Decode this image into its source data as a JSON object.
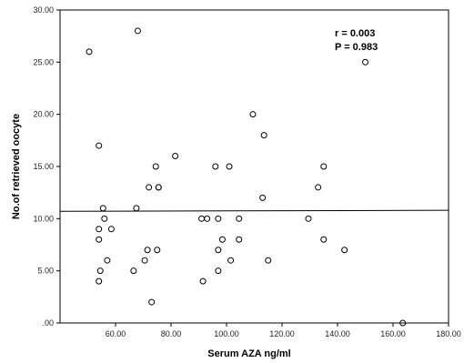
{
  "chart_data": {
    "type": "scatter",
    "title": "",
    "xlabel": "Serum AZA ng/ml",
    "ylabel": "No.of retrieved oocyte",
    "xlim": [
      40,
      180
    ],
    "ylim": [
      0,
      30
    ],
    "x_ticks": [
      60,
      80,
      100,
      120,
      140,
      160,
      180
    ],
    "x_tick_labels": [
      "60.00",
      "80.00",
      "100.00",
      "120.00",
      "140.00",
      "160.00",
      "180.00"
    ],
    "y_ticks": [
      0,
      5,
      10,
      15,
      20,
      25,
      30
    ],
    "y_tick_labels": [
      ".00",
      "5.00",
      "10.00",
      "15.00",
      "20.00",
      "25.00",
      "30.00"
    ],
    "grid": false,
    "annotations": [
      "r = 0.003",
      "P = 0.983"
    ],
    "fit_line": {
      "x": [
        40,
        180
      ],
      "y": [
        10.7,
        10.8
      ]
    },
    "points": [
      {
        "x": 50.5,
        "y": 26
      },
      {
        "x": 54.0,
        "y": 17
      },
      {
        "x": 54.0,
        "y": 9
      },
      {
        "x": 54.0,
        "y": 8
      },
      {
        "x": 54.5,
        "y": 5
      },
      {
        "x": 54.0,
        "y": 4
      },
      {
        "x": 55.5,
        "y": 11
      },
      {
        "x": 56.0,
        "y": 10
      },
      {
        "x": 57.0,
        "y": 6
      },
      {
        "x": 58.5,
        "y": 9
      },
      {
        "x": 66.5,
        "y": 5
      },
      {
        "x": 67.5,
        "y": 11
      },
      {
        "x": 68.0,
        "y": 28
      },
      {
        "x": 70.5,
        "y": 6
      },
      {
        "x": 71.5,
        "y": 7
      },
      {
        "x": 72.0,
        "y": 13
      },
      {
        "x": 73.0,
        "y": 2
      },
      {
        "x": 74.5,
        "y": 15
      },
      {
        "x": 75.0,
        "y": 7
      },
      {
        "x": 75.5,
        "y": 13
      },
      {
        "x": 75.5,
        "y": 13
      },
      {
        "x": 81.5,
        "y": 16
      },
      {
        "x": 91.0,
        "y": 10
      },
      {
        "x": 91.5,
        "y": 4
      },
      {
        "x": 93.0,
        "y": 10
      },
      {
        "x": 96.0,
        "y": 15
      },
      {
        "x": 97.0,
        "y": 10
      },
      {
        "x": 97.0,
        "y": 7
      },
      {
        "x": 97.0,
        "y": 5
      },
      {
        "x": 98.5,
        "y": 8
      },
      {
        "x": 101.0,
        "y": 15
      },
      {
        "x": 101.5,
        "y": 6
      },
      {
        "x": 104.5,
        "y": 10
      },
      {
        "x": 104.5,
        "y": 8
      },
      {
        "x": 109.5,
        "y": 20
      },
      {
        "x": 113.0,
        "y": 12
      },
      {
        "x": 113.5,
        "y": 18
      },
      {
        "x": 115.0,
        "y": 6
      },
      {
        "x": 129.5,
        "y": 10
      },
      {
        "x": 133.0,
        "y": 13
      },
      {
        "x": 135.0,
        "y": 15
      },
      {
        "x": 135.0,
        "y": 8
      },
      {
        "x": 142.5,
        "y": 7
      },
      {
        "x": 150.0,
        "y": 25
      },
      {
        "x": 163.5,
        "y": 0
      }
    ]
  }
}
